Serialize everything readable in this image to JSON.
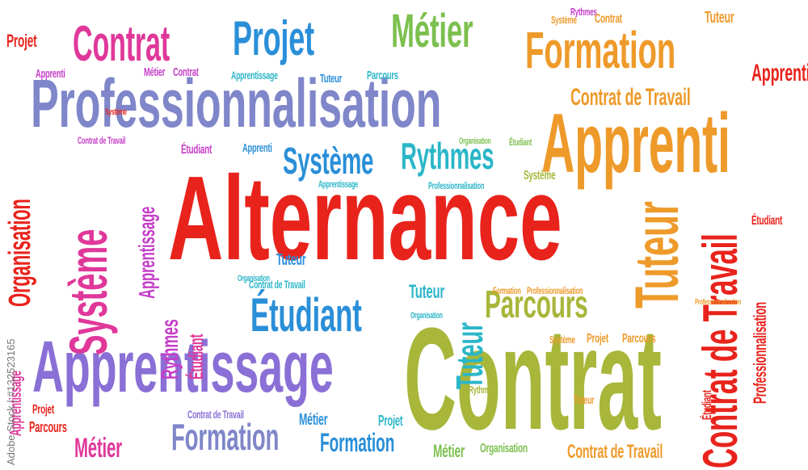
{
  "colors": {
    "red": "#e8231c",
    "purple": "#8a6fd6",
    "blue": "#2a8fd8",
    "teal": "#2bb6c8",
    "green": "#7cc04f",
    "olive": "#a8b63a",
    "orange": "#ee9a2a",
    "pink": "#e0389a",
    "magenta": "#c53ec8",
    "slate": "#7f86c9"
  },
  "words": {
    "alternance": "Alternance",
    "professionnalisation": "Professionnalisation",
    "apprentissage": "Apprentissage",
    "contrat": "Contrat",
    "apprenti": "Apprenti",
    "formation": "Formation",
    "systeme": "Système",
    "tuteur": "Tuteur",
    "contrat_de_travail": "Contrat de Travail",
    "projet": "Projet",
    "metier": "Métier",
    "rythmes": "Rythmes",
    "parcours": "Parcours",
    "etudiant": "Étudiant",
    "organisation": "Organisation"
  },
  "watermark": "Adobe Stock | #132523165"
}
